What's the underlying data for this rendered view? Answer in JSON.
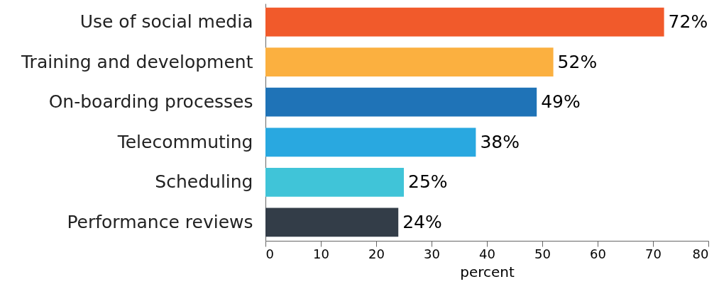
{
  "chart_data": {
    "type": "bar",
    "orientation": "horizontal",
    "xlabel": "percent",
    "categories": [
      "Use of social media",
      "Training and development",
      "On-boarding processes",
      "Telecommuting",
      "Scheduling",
      "Performance reviews"
    ],
    "values": [
      72,
      52,
      49,
      38,
      25,
      24
    ],
    "colors": [
      "#f15a2b",
      "#fbb040",
      "#1f73b7",
      "#29a8e0",
      "#40c4d8",
      "#333d48"
    ],
    "value_labels": [
      "72%",
      "52%",
      "49%",
      "38%",
      "25%",
      "24%"
    ],
    "xlim": [
      0,
      80
    ],
    "xticks": [
      0,
      10,
      20,
      30,
      40,
      50,
      60,
      70,
      80
    ],
    "grid": false
  }
}
